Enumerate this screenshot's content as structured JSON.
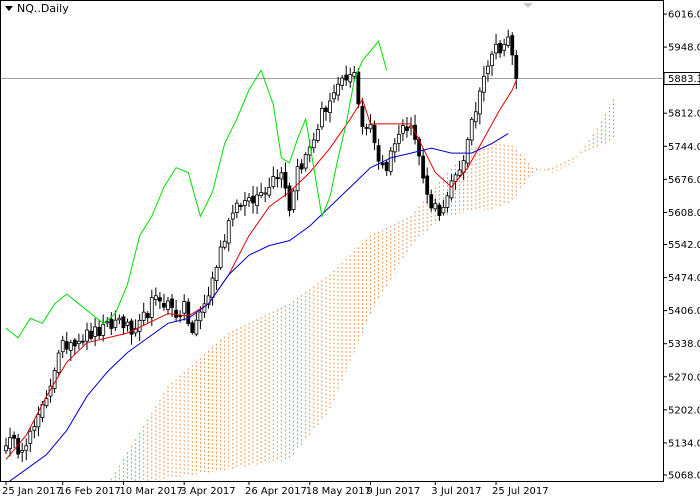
{
  "chart_data": {
    "type": "candlestick",
    "title": "NQ..Daily",
    "current_price_label": "5883.3",
    "current_price": 5883.3,
    "ylim": [
      5068,
      6030
    ],
    "y_ticks": [
      "6016.0",
      "5948.0",
      "5880.0",
      "5812.0",
      "5744.0",
      "5676.0",
      "5608.0",
      "5542.0",
      "5474.0",
      "5406.0",
      "5338.0",
      "5270.0",
      "5202.0",
      "5134.0",
      "5068.0"
    ],
    "x_ticks": [
      {
        "label": "25 Jan 2017",
        "bar": 0
      },
      {
        "label": "16 Feb 2017",
        "bar": 14
      },
      {
        "label": "10 Mar 2017",
        "bar": 29
      },
      {
        "label": "3 Apr 2017",
        "bar": 44
      },
      {
        "label": "26 Apr 2017",
        "bar": 60
      },
      {
        "label": "18 May 2017",
        "bar": 75
      },
      {
        "label": "9 Jun 2017",
        "bar": 90
      },
      {
        "label": "3 Jul 2017",
        "bar": 106
      },
      {
        "label": "25 Jul 2017",
        "bar": 121
      }
    ],
    "bar_count": 129,
    "close_anchors": [
      [
        0,
        5140
      ],
      [
        3,
        5125
      ],
      [
        6,
        5150
      ],
      [
        8,
        5180
      ],
      [
        10,
        5230
      ],
      [
        12,
        5290
      ],
      [
        14,
        5330
      ],
      [
        16,
        5345
      ],
      [
        18,
        5350
      ],
      [
        20,
        5355
      ],
      [
        22,
        5360
      ],
      [
        24,
        5365
      ],
      [
        26,
        5375
      ],
      [
        28,
        5390
      ],
      [
        30,
        5370
      ],
      [
        32,
        5355
      ],
      [
        34,
        5390
      ],
      [
        36,
        5420
      ],
      [
        38,
        5430
      ],
      [
        40,
        5420
      ],
      [
        42,
        5400
      ],
      [
        44,
        5410
      ],
      [
        46,
        5360
      ],
      [
        48,
        5400
      ],
      [
        50,
        5440
      ],
      [
        52,
        5500
      ],
      [
        54,
        5560
      ],
      [
        56,
        5620
      ],
      [
        58,
        5630
      ],
      [
        60,
        5625
      ],
      [
        62,
        5640
      ],
      [
        64,
        5660
      ],
      [
        66,
        5680
      ],
      [
        68,
        5700
      ],
      [
        70,
        5620
      ],
      [
        72,
        5700
      ],
      [
        74,
        5720
      ],
      [
        76,
        5760
      ],
      [
        78,
        5810
      ],
      [
        80,
        5840
      ],
      [
        82,
        5860
      ],
      [
        84,
        5880
      ],
      [
        86,
        5890
      ],
      [
        88,
        5790
      ],
      [
        90,
        5780
      ],
      [
        92,
        5720
      ],
      [
        94,
        5700
      ],
      [
        96,
        5760
      ],
      [
        98,
        5780
      ],
      [
        100,
        5800
      ],
      [
        102,
        5720
      ],
      [
        104,
        5640
      ],
      [
        106,
        5620
      ],
      [
        108,
        5610
      ],
      [
        110,
        5660
      ],
      [
        112,
        5700
      ],
      [
        114,
        5750
      ],
      [
        116,
        5820
      ],
      [
        118,
        5900
      ],
      [
        120,
        5940
      ],
      [
        122,
        5950
      ],
      [
        124,
        5960
      ],
      [
        126,
        5890
      ]
    ],
    "series": [
      {
        "key": "tenkan",
        "color": "#e00000",
        "values": [
          [
            0,
            5100
          ],
          [
            5,
            5150
          ],
          [
            10,
            5230
          ],
          [
            15,
            5300
          ],
          [
            20,
            5340
          ],
          [
            25,
            5350
          ],
          [
            30,
            5360
          ],
          [
            35,
            5380
          ],
          [
            40,
            5400
          ],
          [
            45,
            5395
          ],
          [
            50,
            5420
          ],
          [
            55,
            5480
          ],
          [
            60,
            5560
          ],
          [
            65,
            5620
          ],
          [
            70,
            5650
          ],
          [
            75,
            5690
          ],
          [
            80,
            5740
          ],
          [
            85,
            5800
          ],
          [
            88,
            5840
          ],
          [
            90,
            5790
          ],
          [
            95,
            5790
          ],
          [
            100,
            5790
          ],
          [
            103,
            5740
          ],
          [
            106,
            5690
          ],
          [
            110,
            5660
          ],
          [
            114,
            5700
          ],
          [
            118,
            5760
          ],
          [
            122,
            5820
          ],
          [
            125,
            5860
          ],
          [
            126,
            5880
          ]
        ]
      },
      {
        "key": "kijun",
        "color": "#0000cc",
        "values": [
          [
            0,
            5050
          ],
          [
            5,
            5080
          ],
          [
            10,
            5110
          ],
          [
            15,
            5160
          ],
          [
            20,
            5230
          ],
          [
            25,
            5280
          ],
          [
            30,
            5320
          ],
          [
            35,
            5350
          ],
          [
            40,
            5380
          ],
          [
            45,
            5390
          ],
          [
            50,
            5420
          ],
          [
            55,
            5480
          ],
          [
            60,
            5520
          ],
          [
            65,
            5540
          ],
          [
            70,
            5550
          ],
          [
            75,
            5580
          ],
          [
            80,
            5620
          ],
          [
            85,
            5660
          ],
          [
            90,
            5700
          ],
          [
            95,
            5720
          ],
          [
            100,
            5730
          ],
          [
            105,
            5740
          ],
          [
            110,
            5730
          ],
          [
            115,
            5730
          ],
          [
            120,
            5750
          ],
          [
            124,
            5770
          ]
        ]
      },
      {
        "key": "chikou",
        "color": "#00dd00",
        "values": [
          [
            0,
            5370
          ],
          [
            3,
            5350
          ],
          [
            6,
            5390
          ],
          [
            9,
            5380
          ],
          [
            12,
            5420
          ],
          [
            15,
            5440
          ],
          [
            18,
            5420
          ],
          [
            21,
            5400
          ],
          [
            24,
            5380
          ],
          [
            27,
            5400
          ],
          [
            30,
            5460
          ],
          [
            33,
            5560
          ],
          [
            36,
            5600
          ],
          [
            39,
            5660
          ],
          [
            42,
            5700
          ],
          [
            45,
            5690
          ],
          [
            48,
            5600
          ],
          [
            51,
            5650
          ],
          [
            54,
            5750
          ],
          [
            57,
            5800
          ],
          [
            60,
            5860
          ],
          [
            63,
            5900
          ],
          [
            66,
            5830
          ],
          [
            68,
            5720
          ],
          [
            70,
            5710
          ],
          [
            72,
            5760
          ],
          [
            74,
            5800
          ],
          [
            76,
            5700
          ],
          [
            78,
            5600
          ],
          [
            80,
            5640
          ],
          [
            82,
            5720
          ],
          [
            84,
            5790
          ],
          [
            86,
            5880
          ],
          [
            88,
            5920
          ],
          [
            90,
            5940
          ],
          [
            92,
            5960
          ],
          [
            94,
            5900
          ]
        ]
      }
    ],
    "cloud": {
      "color": "#f08030",
      "span_a": [
        [
          26,
          5060
        ],
        [
          40,
          5250
        ],
        [
          55,
          5360
        ],
        [
          70,
          5420
        ],
        [
          80,
          5480
        ],
        [
          90,
          5560
        ],
        [
          100,
          5600
        ],
        [
          108,
          5680
        ],
        [
          115,
          5740
        ],
        [
          120,
          5750
        ],
        [
          125,
          5745
        ],
        [
          130,
          5700
        ],
        [
          135,
          5690
        ],
        [
          140,
          5710
        ],
        [
          146,
          5780
        ],
        [
          150,
          5840
        ]
      ],
      "span_b": [
        [
          26,
          5040
        ],
        [
          40,
          5060
        ],
        [
          55,
          5080
        ],
        [
          70,
          5100
        ],
        [
          80,
          5200
        ],
        [
          90,
          5400
        ],
        [
          100,
          5540
        ],
        [
          108,
          5600
        ],
        [
          115,
          5610
        ],
        [
          120,
          5615
        ],
        [
          125,
          5630
        ],
        [
          130,
          5690
        ],
        [
          135,
          5700
        ],
        [
          140,
          5720
        ],
        [
          146,
          5740
        ],
        [
          150,
          5760
        ]
      ]
    }
  }
}
